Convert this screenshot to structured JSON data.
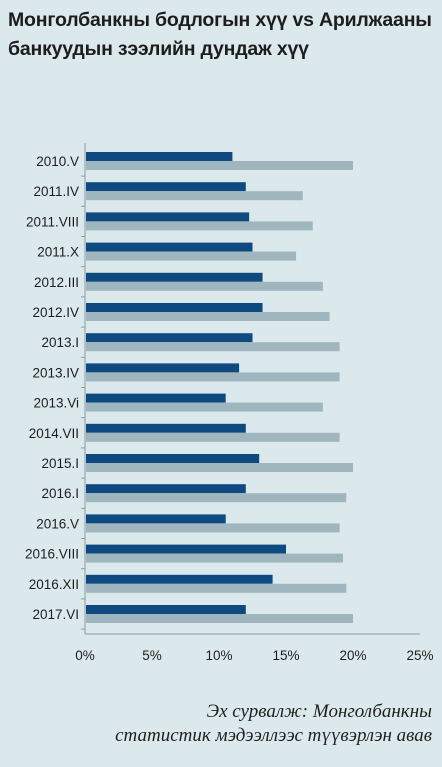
{
  "title_line1": "Монголбанкны бодлогын хүү vs Арилжааны",
  "title_line2": "банкуудын зээлийн дундаж хүү",
  "source_line1": "Эх сурвалж: Монголбанкны",
  "source_line2": "статистик мэдээллээс түүвэрлэн авав",
  "colors": {
    "policy": "#0e4a80",
    "loan": "#9fb6bf",
    "background": "#dbe9ec",
    "axis": "#8a9ba3"
  },
  "chart_data": {
    "type": "bar",
    "orientation": "horizontal",
    "categories": [
      "2010.V",
      "2011.IV",
      "2011.VIII",
      "2011.X",
      "2012.III",
      "2012.IV",
      "2013.I",
      "2013.IV",
      "2013.Vi",
      "2014.VII",
      "2015.I",
      "2016.I",
      "2016.V",
      "2016.VIII",
      "2016.XII",
      "2017.VI"
    ],
    "series": [
      {
        "values": [
          11,
          12,
          12.25,
          12.5,
          13.25,
          13.25,
          12.5,
          11.5,
          10.5,
          12,
          13,
          12,
          10.5,
          15,
          14,
          12
        ]
      },
      {
        "values": [
          20,
          16.25,
          17,
          15.75,
          17.75,
          18.25,
          19,
          19,
          17.75,
          19,
          20,
          19.5,
          19,
          19.25,
          19.5,
          20
        ]
      }
    ],
    "xlim": [
      0,
      25
    ],
    "xticks": [
      "0%",
      "5%",
      "10%",
      "15%",
      "20%",
      "25%"
    ],
    "xlabel": "",
    "ylabel": "",
    "grid": false,
    "legend": "none"
  }
}
